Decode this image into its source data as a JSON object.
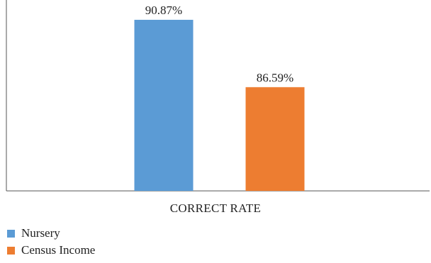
{
  "chart_data": {
    "type": "bar",
    "categories": [
      "CORRECT RATE"
    ],
    "series": [
      {
        "name": "Nursery",
        "values": [
          90.87
        ],
        "label": "90.87%",
        "color": "#5b9bd5"
      },
      {
        "name": "Census Income",
        "values": [
          86.59
        ],
        "label": "86.59%",
        "color": "#ed7d31"
      }
    ],
    "ylim": [
      80,
      91.5
    ],
    "grid": false,
    "legend_position": "bottom-left"
  }
}
